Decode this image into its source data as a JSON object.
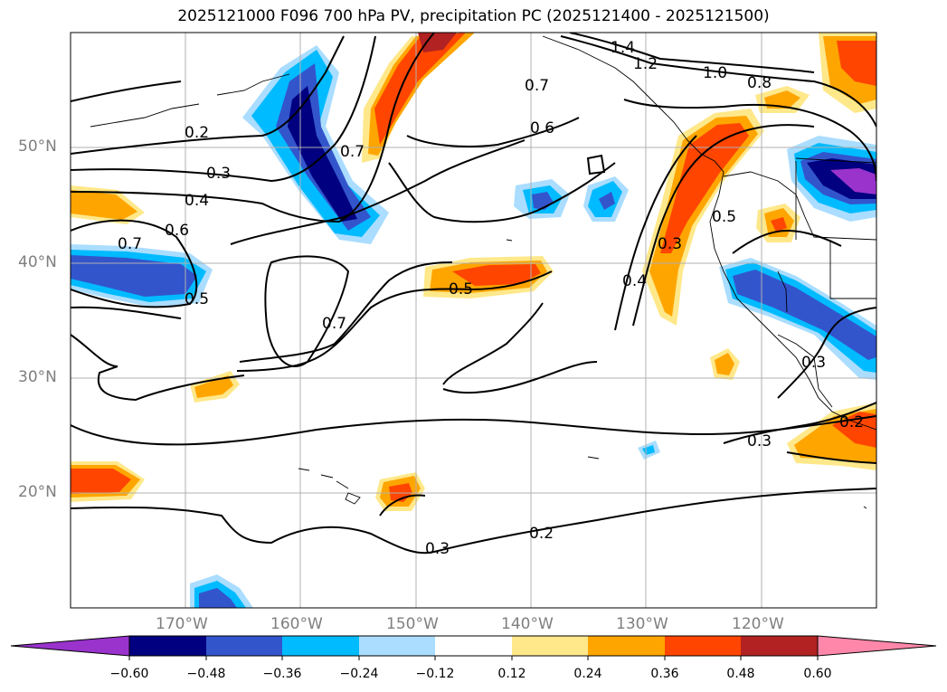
{
  "title": "2025121000 F096 700 hPa PV, precipitation PC (2025121400 - 2025121500)",
  "map": {
    "lat_labels": [
      "50°N",
      "40°N",
      "30°N",
      "20°N"
    ],
    "lon_labels": [
      "170°W",
      "160°W",
      "150°W",
      "140°W",
      "130°W",
      "120°W"
    ],
    "contour_labels": [
      "1.4",
      "1.2",
      "1.0",
      "0.8",
      "0.7",
      "0.7",
      "0.6",
      "0.2",
      "0.3",
      "0.4",
      "0.6",
      "0.7",
      "0.5",
      "0.5",
      "0.7",
      "0.5",
      "0.4",
      "0.3",
      "0.2",
      "0.3",
      "0.3",
      "0.3",
      "0.2"
    ]
  },
  "colorbar": {
    "ticks": [
      "−0.60",
      "−0.48",
      "−0.36",
      "−0.24",
      "−0.12",
      "0.12",
      "0.24",
      "0.36",
      "0.48",
      "0.60"
    ],
    "colors": [
      "#9933cc",
      "#000080",
      "#3355cc",
      "#00bbff",
      "#aaddff",
      "#ffffff",
      "#ffe88a",
      "#ffa500",
      "#ff4500",
      "#b22222",
      "#ff88aa",
      "#ff88aa"
    ]
  }
}
